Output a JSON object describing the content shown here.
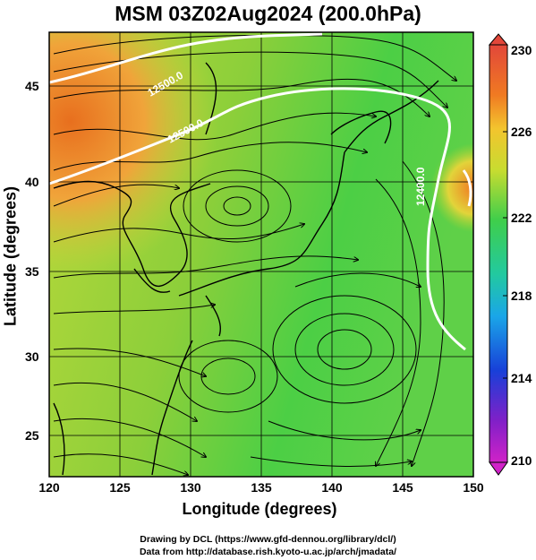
{
  "title": "MSM 03Z02Aug2024 (200.0hPa)",
  "x_axis": {
    "label": "Longitude (degrees)",
    "ticks": [
      "120",
      "125",
      "130",
      "135",
      "140",
      "145",
      "150"
    ]
  },
  "y_axis": {
    "label": "Latitude  (degrees)",
    "ticks": [
      "25",
      "30",
      "35",
      "40",
      "45"
    ]
  },
  "colorbar": {
    "ticks": [
      "230",
      "226",
      "222",
      "218",
      "214",
      "210"
    ]
  },
  "contour_labels": [
    "12500.0",
    "12500.0",
    "12400.0"
  ],
  "credits": {
    "line1": "Drawing by DCL (https://www.gfd-dennou.org/library/dcl/)",
    "line2": "Data from http://database.rish.kyoto-u.ac.jp/arch/jmadata/"
  },
  "map": {
    "lon_range": [
      120,
      150
    ],
    "lat_range": [
      22.5,
      47.5
    ],
    "field_colors": {
      "warm_core": "#e8701f",
      "mid": "#a8d430",
      "cool": "#3dce4d"
    }
  }
}
